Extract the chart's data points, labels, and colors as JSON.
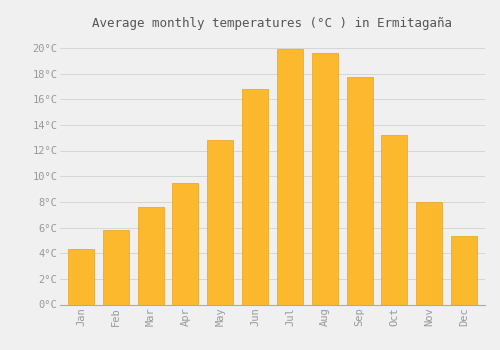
{
  "months": [
    "Jan",
    "Feb",
    "Mar",
    "Apr",
    "May",
    "Jun",
    "Jul",
    "Aug",
    "Sep",
    "Oct",
    "Nov",
    "Dec"
  ],
  "temperatures": [
    4.3,
    5.8,
    7.6,
    9.5,
    12.8,
    16.8,
    19.9,
    19.6,
    17.7,
    13.2,
    8.0,
    5.3
  ],
  "bar_color": "#FDB92E",
  "bar_edge_color": "#E8A020",
  "title": "Average monthly temperatures (°C ) in Ermitagaña",
  "ylim": [
    0,
    21
  ],
  "ytick_step": 2,
  "background_color": "#F0F0F0",
  "grid_color": "#CCCCCC",
  "title_fontsize": 9,
  "tick_fontsize": 7.5,
  "tick_color": "#999999",
  "font_family": "monospace"
}
